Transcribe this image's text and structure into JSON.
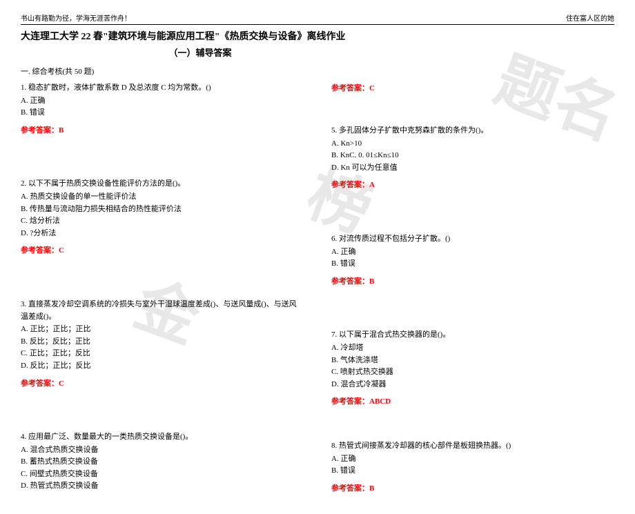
{
  "header": {
    "left": "书山有路勤为径，学海无涯苦作舟！",
    "right": "住在富人区的她"
  },
  "title": "大连理工大学 22 春\"建筑环境与能源应用工程\"《热质交换与设备》离线作业",
  "subtitle": "（一）辅导答案",
  "section": "一. 综合考核(共 50 题)",
  "watermark": {
    "c1": "金",
    "c2": "榜",
    "c3": "题",
    "c4": "名"
  },
  "leftCol": {
    "q1": {
      "text": "1. 稳态扩散时，液体扩散系数 D 及总浓度 C 均为常数。()",
      "optA": "A. 正确",
      "optB": "B. 错误",
      "answer": "参考答案：B"
    },
    "q2": {
      "text": "2. 以下不属于热质交换设备性能评价方法的是()。",
      "optA": "A. 热质交换设备的单一性能评价法",
      "optB": "B. 传热量与流动阻力损失相结合的热性能评价法",
      "optC": "C. 焓分析法",
      "optD": "D. ?分析法",
      "answer": "参考答案：C"
    },
    "q3": {
      "text": "3. 直接蒸发冷却空调系统的冷损失与室外干湿球温度差成()、与送风量成()、与送风温差成()。",
      "optA": "A. 正比；正比；正比",
      "optB": "B. 反比；反比；正比",
      "optC": "C. 正比；正比；反比",
      "optD": "D. 反比；正比；反比",
      "answer": "参考答案：C"
    },
    "q4": {
      "text": "4. 应用最广泛、数量最大的一类热质交换设备是()。",
      "optA": "A. 混合式热质交换设备",
      "optB": "B. 蓄热式热质交换设备",
      "optC": "C. 间壁式热质交换设备",
      "optD": "D. 热管式热质交换设备"
    }
  },
  "rightCol": {
    "topAnswer": "参考答案：C",
    "q5": {
      "text": "5. 多孔固体分子扩散中克努森扩散的条件为()。",
      "optA": "A. Kn>10",
      "optB": "B. KnC. 0. 01≤Kn≤10",
      "optD": "D. Kn 可以为任意值",
      "answer": "参考答案：A"
    },
    "q6": {
      "text": "6. 对流传质过程不包括分子扩散。()",
      "optA": "A. 正确",
      "optB": "B. 错误",
      "answer": "参考答案：B"
    },
    "q7": {
      "text": "7. 以下属于混合式热交换器的是()。",
      "optA": "A. 冷却塔",
      "optB": "B. 气体洗涤塔",
      "optC": "C. 喷射式热交换器",
      "optD": "D. 混合式冷凝器",
      "answer": "参考答案：ABCD"
    },
    "q8": {
      "text": "8. 热管式间接蒸发冷却器的核心部件是板翅换热器。()",
      "optA": "A. 正确",
      "optB": "B. 错误",
      "answer": "参考答案：B"
    }
  }
}
